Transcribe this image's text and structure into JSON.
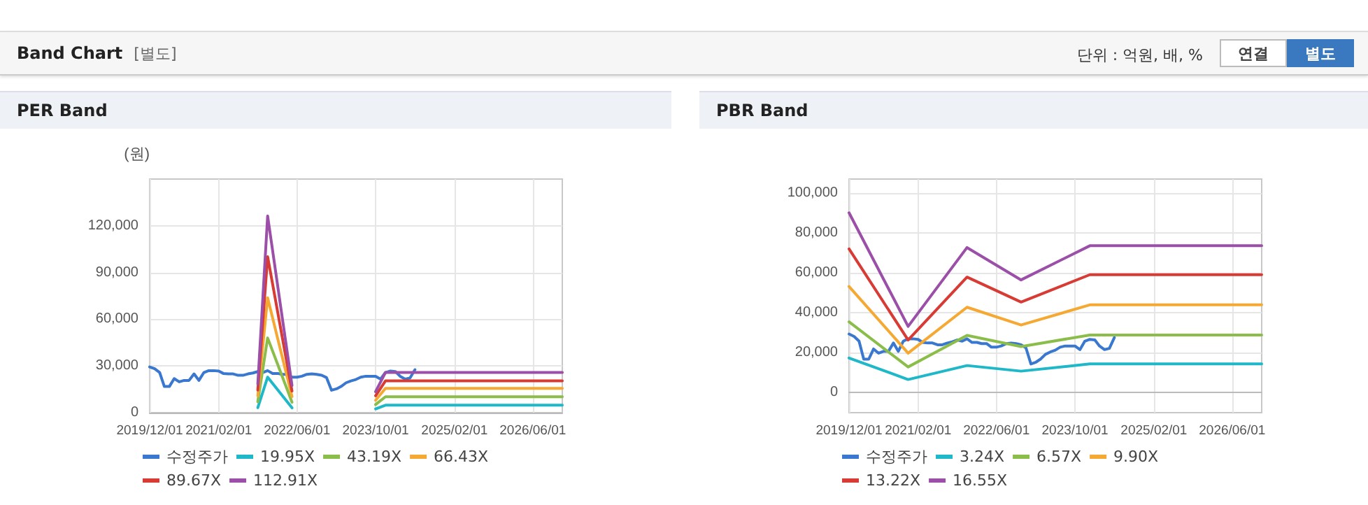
{
  "chart_data": [
    {
      "type": "line",
      "title": "PER Band",
      "ylabel": "(원)",
      "annotations": [
        "Band Chart",
        "[별도]",
        "단위 : 억원, 배, %",
        "연결",
        "별도"
      ],
      "xlim": [
        "2019-12-01",
        "2026-12-01"
      ],
      "xticks": [
        {
          "value": "2019-12-01",
          "label": "2019/12/01"
        },
        {
          "value": "2021-02-01",
          "label": "2021/02/01"
        },
        {
          "value": "2022-06-01",
          "label": "2022/06/01"
        },
        {
          "value": "2023-10-01",
          "label": "2023/10/01"
        },
        {
          "value": "2025-02-01",
          "label": "2025/02/01"
        },
        {
          "value": "2026-06-01",
          "label": "2026/06/01"
        }
      ],
      "ylim": [
        0,
        150000
      ],
      "yticks": [
        0,
        {
          "value": 30000,
          "label": "30,000"
        },
        {
          "value": 60000,
          "label": "60,000"
        },
        {
          "value": 90000,
          "label": "90,000"
        },
        {
          "value": 120000,
          "label": "120,000"
        }
      ],
      "grid": true,
      "legend": "bottom",
      "marker": "none",
      "line_style": "solid",
      "series": [
        {
          "name": "수정주가",
          "color": "#3a78d0",
          "x": [
            "2019-12",
            "2020-01",
            "2020-02",
            "2020-03",
            "2020-04",
            "2020-05",
            "2020-06",
            "2020-07",
            "2020-08",
            "2020-09",
            "2020-10",
            "2020-11",
            "2020-12",
            "2021-01",
            "2021-02",
            "2021-03",
            "2021-04",
            "2021-05",
            "2021-06",
            "2021-07",
            "2021-08",
            "2021-09",
            "2021-10",
            "2021-11",
            "2021-12",
            "2022-01",
            "2022-02",
            "2022-03",
            "2022-04",
            "2022-05",
            "2022-06",
            "2022-07",
            "2022-08",
            "2022-09",
            "2022-10",
            "2022-11",
            "2022-12",
            "2023-01",
            "2023-02",
            "2023-03",
            "2023-04",
            "2023-05",
            "2023-06",
            "2023-07",
            "2023-08",
            "2023-09",
            "2023-10",
            "2023-11",
            "2023-12",
            "2024-01",
            "2024-02",
            "2024-03",
            "2024-04",
            "2024-05",
            "2024-06"
          ],
          "values": [
            29400,
            28200,
            25800,
            16800,
            16800,
            21900,
            19800,
            20700,
            20700,
            24900,
            20700,
            25800,
            27000,
            27000,
            26700,
            25200,
            24900,
            24900,
            24000,
            24000,
            24900,
            25500,
            26400,
            25800,
            27000,
            25200,
            25200,
            24600,
            24600,
            22800,
            22800,
            23400,
            24600,
            24900,
            24600,
            24000,
            22500,
            14400,
            15300,
            16800,
            19200,
            20400,
            21300,
            22800,
            23400,
            23400,
            23400,
            21600,
            25800,
            26700,
            26400,
            23400,
            21600,
            22200,
            27600
          ]
        },
        {
          "name": "19.95X",
          "color": "#1eb8c8",
          "x": [
            "2021-10",
            "2021-12",
            "2022-05",
            "2023-01",
            "2023-10",
            "2023-12",
            "2026-12"
          ],
          "values": [
            3200,
            22800,
            3100,
            null,
            2400,
            4800,
            4800
          ]
        },
        {
          "name": "43.19X",
          "color": "#8bbd4a",
          "x": [
            "2021-10",
            "2021-12",
            "2022-05",
            "2023-01",
            "2023-10",
            "2023-12",
            "2026-12"
          ],
          "values": [
            7000,
            48000,
            6700,
            null,
            5200,
            10200,
            10200
          ]
        },
        {
          "name": "66.43X",
          "color": "#f5a832",
          "x": [
            "2021-10",
            "2021-12",
            "2022-05",
            "2023-01",
            "2023-10",
            "2023-12",
            "2026-12"
          ],
          "values": [
            10800,
            73800,
            10300,
            null,
            8000,
            15600,
            15600
          ]
        },
        {
          "name": "89.67X",
          "color": "#d83a34",
          "x": [
            "2021-10",
            "2021-12",
            "2022-05",
            "2023-01",
            "2023-10",
            "2023-12",
            "2026-12"
          ],
          "values": [
            14500,
            100200,
            13900,
            null,
            10800,
            20400,
            20400
          ]
        },
        {
          "name": "112.91X",
          "color": "#9b4fa8",
          "x": [
            "2021-10",
            "2021-12",
            "2022-05",
            "2023-01",
            "2023-10",
            "2023-12",
            "2026-12"
          ],
          "values": [
            18300,
            126300,
            17500,
            null,
            13500,
            25800,
            25800
          ]
        }
      ]
    },
    {
      "type": "line",
      "title": "PBR Band",
      "xlim": [
        "2019-12-01",
        "2026-12-01"
      ],
      "xticks": [
        {
          "value": "2019-12-01",
          "label": "2019/12/01"
        },
        {
          "value": "2021-02-01",
          "label": "2021/02/01"
        },
        {
          "value": "2022-06-01",
          "label": "2022/06/01"
        },
        {
          "value": "2023-10-01",
          "label": "2023/10/01"
        },
        {
          "value": "2025-02-01",
          "label": "2025/02/01"
        },
        {
          "value": "2026-06-01",
          "label": "2026/06/01"
        }
      ],
      "ylim": [
        -10000,
        107000
      ],
      "yticks": [
        0,
        {
          "value": 20000,
          "label": "20,000"
        },
        {
          "value": 40000,
          "label": "40,000"
        },
        {
          "value": 60000,
          "label": "60,000"
        },
        {
          "value": 80000,
          "label": "80,000"
        },
        {
          "value": 100000,
          "label": "100,000"
        }
      ],
      "grid": true,
      "legend": "bottom",
      "marker": "none",
      "line_style": "solid",
      "series": [
        {
          "name": "수정주가",
          "color": "#3a78d0",
          "x": [
            "2019-12",
            "2020-01",
            "2020-02",
            "2020-03",
            "2020-04",
            "2020-05",
            "2020-06",
            "2020-07",
            "2020-08",
            "2020-09",
            "2020-10",
            "2020-11",
            "2020-12",
            "2021-01",
            "2021-02",
            "2021-03",
            "2021-04",
            "2021-05",
            "2021-06",
            "2021-07",
            "2021-08",
            "2021-09",
            "2021-10",
            "2021-11",
            "2021-12",
            "2022-01",
            "2022-02",
            "2022-03",
            "2022-04",
            "2022-05",
            "2022-06",
            "2022-07",
            "2022-08",
            "2022-09",
            "2022-10",
            "2022-11",
            "2022-12",
            "2023-01",
            "2023-02",
            "2023-03",
            "2023-04",
            "2023-05",
            "2023-06",
            "2023-07",
            "2023-08",
            "2023-09",
            "2023-10",
            "2023-11",
            "2023-12",
            "2024-01",
            "2024-02",
            "2024-03",
            "2024-04",
            "2024-05",
            "2024-06"
          ],
          "values": [
            29400,
            28200,
            25800,
            16800,
            16800,
            21900,
            19800,
            20700,
            20700,
            24900,
            20700,
            25800,
            27000,
            27000,
            26700,
            25200,
            24900,
            24900,
            24000,
            24000,
            24900,
            25500,
            26400,
            25800,
            27000,
            25200,
            25200,
            24600,
            24600,
            22800,
            22800,
            23400,
            24600,
            24900,
            24600,
            24000,
            22500,
            14400,
            15300,
            16800,
            19200,
            20400,
            21300,
            22800,
            23400,
            23400,
            23400,
            21600,
            25800,
            26700,
            26400,
            23400,
            21600,
            22200,
            27600
          ]
        },
        {
          "name": "3.24X",
          "color": "#1eb8c8",
          "x": [
            "2019-12",
            "2020-12",
            "2021-12",
            "2022-11",
            "2024-01",
            "2026-12"
          ],
          "values": [
            17400,
            6600,
            13600,
            10800,
            14400,
            14400
          ]
        },
        {
          "name": "6.57X",
          "color": "#8bbd4a",
          "x": [
            "2019-12",
            "2020-12",
            "2021-12",
            "2022-11",
            "2024-01",
            "2026-12"
          ],
          "values": [
            35500,
            12900,
            28700,
            23100,
            28900,
            28900
          ]
        },
        {
          "name": "9.90X",
          "color": "#f5a832",
          "x": [
            "2019-12",
            "2020-12",
            "2021-12",
            "2022-11",
            "2024-01",
            "2026-12"
          ],
          "values": [
            53200,
            19800,
            42800,
            33900,
            44000,
            44000
          ]
        },
        {
          "name": "13.22X",
          "color": "#d83a34",
          "x": [
            "2019-12",
            "2020-12",
            "2021-12",
            "2022-11",
            "2024-01",
            "2026-12"
          ],
          "values": [
            72000,
            26400,
            57900,
            45400,
            59100,
            59100
          ]
        },
        {
          "name": "16.55X",
          "color": "#9b4fa8",
          "x": [
            "2019-12",
            "2020-12",
            "2021-12",
            "2022-11",
            "2024-01",
            "2026-12"
          ],
          "values": [
            90100,
            33200,
            72700,
            56500,
            73600,
            73600
          ]
        }
      ]
    }
  ]
}
